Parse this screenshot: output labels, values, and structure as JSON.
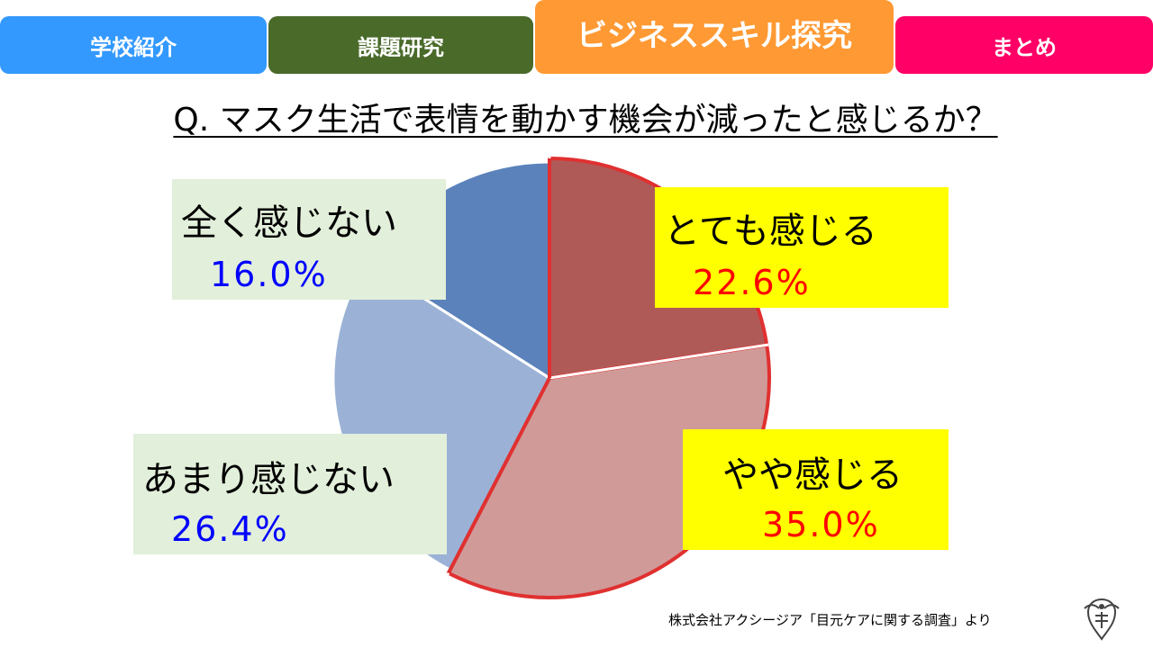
{
  "nav": {
    "tabs": [
      {
        "label": "学校紹介",
        "color": "#3399ff"
      },
      {
        "label": "課題研究",
        "color": "#4a6a2a"
      },
      {
        "label": "ビジネススキル探究",
        "color": "#ff9933"
      },
      {
        "label": "まとめ",
        "color": "#ff0066"
      }
    ]
  },
  "question": "Q. マスク生活で表情を動かす機会が減ったと感じるか？",
  "chart_data": {
    "type": "pie",
    "title": "Q. マスク生活で表情を動かす機会が減ったと感じるか？",
    "categories": [
      "とても感じる",
      "やや感じる",
      "あまり感じない",
      "全く感じない"
    ],
    "values": [
      22.6,
      35.0,
      26.4,
      16.0
    ],
    "value_labels": [
      "22.6%",
      "35.0%",
      "26.4%",
      "16.0%"
    ],
    "colors": [
      "#b05a58",
      "#d09a98",
      "#9bb2d6",
      "#5b82ba"
    ],
    "highlight_color": "#e03030",
    "highlighted": [
      true,
      true,
      false,
      false
    ],
    "start": "12 o'clock",
    "direction": "clockwise"
  },
  "source_text": "株式会社アクシージア「目元ケアに関する調査」より",
  "emblem_icon": "school-emblem-icon"
}
